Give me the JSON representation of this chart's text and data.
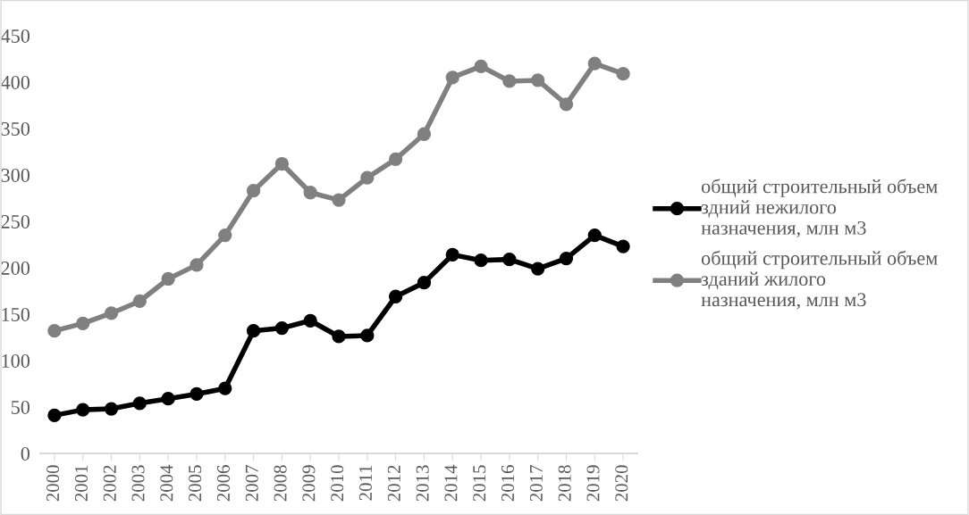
{
  "chart_data": {
    "type": "line",
    "categories": [
      "2000",
      "2001",
      "2002",
      "2003",
      "2004",
      "2005",
      "2006",
      "2007",
      "2008",
      "2009",
      "2010",
      "2011",
      "2012",
      "2013",
      "2014",
      "2015",
      "2016",
      "2017",
      "2018",
      "2019",
      "2020"
    ],
    "series": [
      {
        "name": "общий строительный объем здний нежилого назначения, млн м3",
        "color": "#000000",
        "values": [
          41,
          47,
          48,
          54,
          59,
          64,
          70,
          132,
          135,
          143,
          126,
          127,
          169,
          184,
          214,
          208,
          209,
          199,
          210,
          235,
          223
        ]
      },
      {
        "name": "общий строительный объем зданий жилого назначения, млн м3",
        "color": "#808080",
        "values": [
          132,
          140,
          151,
          164,
          188,
          203,
          235,
          283,
          312,
          281,
          273,
          297,
          317,
          344,
          405,
          417,
          401,
          402,
          376,
          420,
          409
        ]
      }
    ],
    "ylim": [
      0,
      450
    ],
    "yticks": [
      0,
      50,
      100,
      150,
      200,
      250,
      300,
      350,
      400,
      450
    ],
    "grid": false,
    "legend": "right",
    "marker": "circle",
    "line_style": "solid"
  }
}
